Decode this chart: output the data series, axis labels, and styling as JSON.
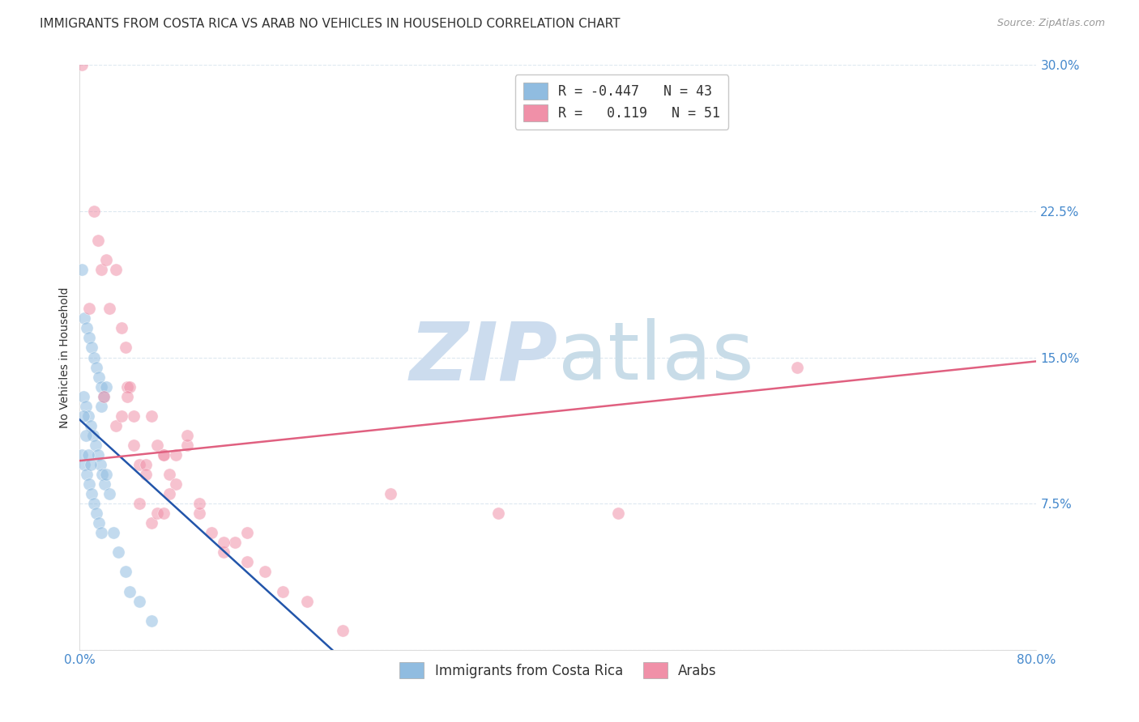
{
  "title": "IMMIGRANTS FROM COSTA RICA VS ARAB NO VEHICLES IN HOUSEHOLD CORRELATION CHART",
  "source": "Source: ZipAtlas.com",
  "ylabel": "No Vehicles in Household",
  "xlim": [
    0.0,
    0.8
  ],
  "ylim": [
    0.0,
    0.3
  ],
  "xticks": [
    0.0,
    0.2,
    0.4,
    0.6,
    0.8
  ],
  "yticks": [
    0.0,
    0.075,
    0.15,
    0.225,
    0.3
  ],
  "xticklabels": [
    "0.0%",
    "",
    "",
    "",
    "80.0%"
  ],
  "yticklabels": [
    "",
    "7.5%",
    "15.0%",
    "22.5%",
    "30.0%"
  ],
  "legend_R_entries": [
    {
      "label_r": "R = -0.447",
      "label_n": "N = 43",
      "color": "#a8c8e8"
    },
    {
      "label_r": "R =   0.119",
      "label_n": "N = 51",
      "color": "#f4a8b8"
    }
  ],
  "blue_scatter_x": [
    0.002,
    0.004,
    0.006,
    0.008,
    0.01,
    0.012,
    0.014,
    0.016,
    0.018,
    0.02,
    0.003,
    0.005,
    0.007,
    0.009,
    0.011,
    0.013,
    0.015,
    0.017,
    0.019,
    0.021,
    0.002,
    0.004,
    0.006,
    0.008,
    0.01,
    0.012,
    0.014,
    0.016,
    0.018,
    0.003,
    0.005,
    0.007,
    0.009,
    0.022,
    0.025,
    0.028,
    0.032,
    0.038,
    0.042,
    0.05,
    0.06,
    0.018,
    0.022
  ],
  "blue_scatter_y": [
    0.195,
    0.17,
    0.165,
    0.16,
    0.155,
    0.15,
    0.145,
    0.14,
    0.135,
    0.13,
    0.13,
    0.125,
    0.12,
    0.115,
    0.11,
    0.105,
    0.1,
    0.095,
    0.09,
    0.085,
    0.1,
    0.095,
    0.09,
    0.085,
    0.08,
    0.075,
    0.07,
    0.065,
    0.06,
    0.12,
    0.11,
    0.1,
    0.095,
    0.09,
    0.08,
    0.06,
    0.05,
    0.04,
    0.03,
    0.025,
    0.015,
    0.125,
    0.135
  ],
  "pink_scatter_x": [
    0.002,
    0.012,
    0.015,
    0.018,
    0.022,
    0.025,
    0.03,
    0.035,
    0.038,
    0.04,
    0.042,
    0.045,
    0.05,
    0.055,
    0.06,
    0.065,
    0.07,
    0.075,
    0.08,
    0.09,
    0.1,
    0.11,
    0.12,
    0.13,
    0.14,
    0.155,
    0.17,
    0.19,
    0.22,
    0.26,
    0.35,
    0.45,
    0.6,
    0.008,
    0.02,
    0.03,
    0.04,
    0.05,
    0.06,
    0.07,
    0.08,
    0.1,
    0.12,
    0.14,
    0.035,
    0.045,
    0.055,
    0.065,
    0.09,
    0.075,
    0.07
  ],
  "pink_scatter_y": [
    0.3,
    0.225,
    0.21,
    0.195,
    0.2,
    0.175,
    0.195,
    0.165,
    0.155,
    0.135,
    0.135,
    0.12,
    0.095,
    0.095,
    0.12,
    0.105,
    0.1,
    0.09,
    0.085,
    0.105,
    0.07,
    0.06,
    0.05,
    0.055,
    0.045,
    0.04,
    0.03,
    0.025,
    0.01,
    0.08,
    0.07,
    0.07,
    0.145,
    0.175,
    0.13,
    0.115,
    0.13,
    0.075,
    0.065,
    0.1,
    0.1,
    0.075,
    0.055,
    0.06,
    0.12,
    0.105,
    0.09,
    0.07,
    0.11,
    0.08,
    0.07
  ],
  "blue_line_x": [
    0.0,
    0.22
  ],
  "blue_line_y": [
    0.118,
    -0.005
  ],
  "pink_line_x": [
    0.0,
    0.8
  ],
  "pink_line_y": [
    0.097,
    0.148
  ],
  "watermark_zip": "ZIP",
  "watermark_atlas": "atlas",
  "watermark_color": "#ccdcee",
  "background_color": "#ffffff",
  "grid_color": "#dde8f0",
  "scatter_blue_color": "#90bce0",
  "scatter_pink_color": "#f090a8",
  "line_blue_color": "#2255aa",
  "line_pink_color": "#e06080",
  "title_fontsize": 11,
  "source_fontsize": 9,
  "axis_label_fontsize": 10,
  "tick_fontsize": 11,
  "scatter_size": 120,
  "scatter_alpha": 0.55,
  "line_width": 1.8
}
